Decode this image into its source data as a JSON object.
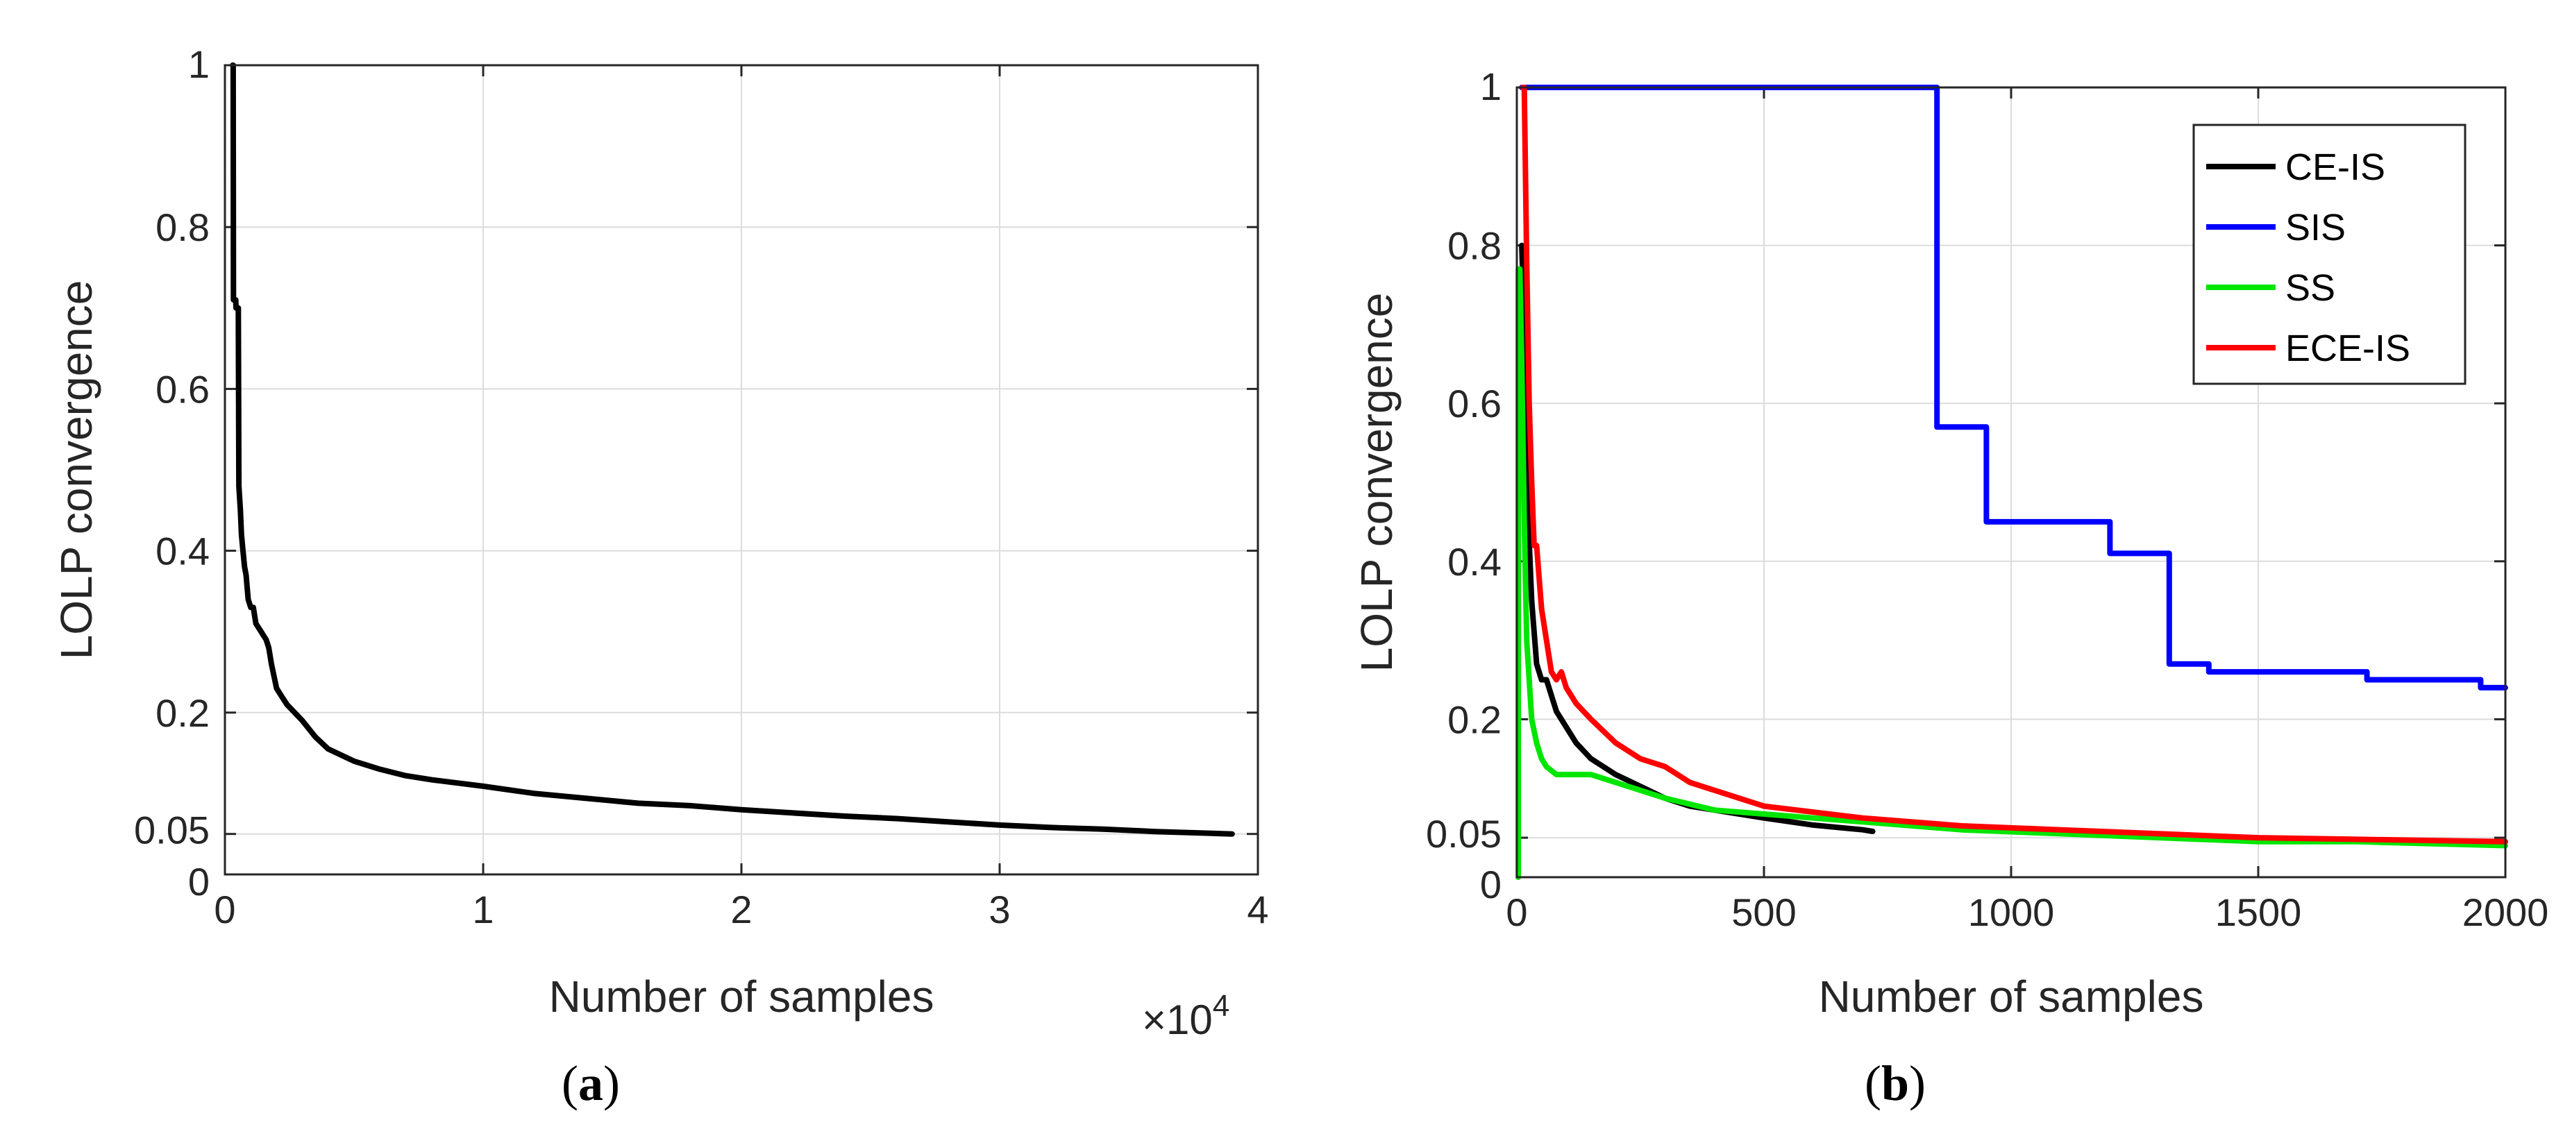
{
  "chart_data": [
    {
      "id": "a",
      "type": "line",
      "caption": "a",
      "title": "",
      "xlabel": "Number of samples",
      "ylabel": "LOLP convergence",
      "xlim": [
        0,
        40000
      ],
      "ylim": [
        0,
        1
      ],
      "x_ticks": [
        0,
        10000,
        20000,
        30000,
        40000
      ],
      "x_tick_labels": [
        "0",
        "1",
        "2",
        "3",
        "4"
      ],
      "x_exponent": {
        "base": "×10",
        "power": "4"
      },
      "y_ticks": [
        0,
        0.05,
        0.2,
        0.4,
        0.6,
        0.8,
        1
      ],
      "y_tick_labels": [
        "0",
        "0.05",
        "0.2",
        "0.4",
        "0.6",
        "0.8",
        "1"
      ],
      "grid": true,
      "series": [
        {
          "name": "LOLP",
          "color": "#000000",
          "x": [
            300,
            320,
            330,
            420,
            430,
            520,
            540,
            600,
            640,
            700,
            760,
            820,
            900,
            1000,
            1100,
            1200,
            1400,
            1600,
            1700,
            1800,
            2000,
            2200,
            2400,
            2700,
            3000,
            3500,
            4000,
            5000,
            6000,
            7000,
            8000,
            10000,
            12000,
            14000,
            16000,
            18000,
            20000,
            22000,
            24000,
            26000,
            28000,
            30000,
            32000,
            34000,
            36000,
            38000,
            39000
          ],
          "y": [
            1.0,
            1.0,
            0.71,
            0.71,
            0.7,
            0.7,
            0.48,
            0.45,
            0.42,
            0.4,
            0.38,
            0.37,
            0.34,
            0.33,
            0.33,
            0.31,
            0.3,
            0.29,
            0.28,
            0.26,
            0.23,
            0.22,
            0.21,
            0.2,
            0.19,
            0.17,
            0.155,
            0.14,
            0.13,
            0.122,
            0.117,
            0.109,
            0.1,
            0.094,
            0.088,
            0.085,
            0.08,
            0.076,
            0.072,
            0.069,
            0.065,
            0.061,
            0.058,
            0.056,
            0.053,
            0.051,
            0.05
          ]
        }
      ]
    },
    {
      "id": "b",
      "type": "line",
      "caption": "b",
      "title": "",
      "xlabel": "Number of samples",
      "ylabel": "LOLP convergence",
      "xlim": [
        0,
        2000
      ],
      "ylim": [
        0,
        1
      ],
      "x_ticks": [
        0,
        500,
        1000,
        1500,
        2000
      ],
      "x_tick_labels": [
        "0",
        "500",
        "1000",
        "1500",
        "2000"
      ],
      "y_ticks": [
        0,
        0.05,
        0.2,
        0.4,
        0.6,
        0.8,
        1
      ],
      "y_tick_labels": [
        "0",
        "0.05",
        "0.2",
        "0.4",
        "0.6",
        "0.8",
        "1"
      ],
      "grid": true,
      "legend_position": "top-right",
      "series": [
        {
          "name": "CE-IS",
          "color": "#000000",
          "x": [
            10,
            15,
            20,
            30,
            40,
            50,
            60,
            80,
            100,
            120,
            150,
            200,
            250,
            300,
            350,
            400,
            500,
            600,
            700,
            720
          ],
          "y": [
            0.8,
            0.7,
            0.5,
            0.35,
            0.27,
            0.25,
            0.25,
            0.21,
            0.19,
            0.17,
            0.15,
            0.13,
            0.115,
            0.1,
            0.09,
            0.085,
            0.075,
            0.066,
            0.06,
            0.058
          ]
        },
        {
          "name": "SIS",
          "color": "#0000ff",
          "x": [
            10,
            850,
            850,
            950,
            950,
            1200,
            1200,
            1320,
            1320,
            1400,
            1400,
            1720,
            1720,
            1950,
            1950,
            2000
          ],
          "y": [
            1.0,
            1.0,
            0.57,
            0.57,
            0.45,
            0.45,
            0.41,
            0.41,
            0.27,
            0.27,
            0.26,
            0.26,
            0.25,
            0.25,
            0.24,
            0.24
          ]
        },
        {
          "name": "SS",
          "color": "#00e600",
          "x": [
            3,
            3,
            6,
            10,
            15,
            20,
            25,
            30,
            40,
            50,
            60,
            80,
            100,
            150,
            200,
            300,
            400,
            500,
            700,
            900,
            1100,
            1300,
            1500,
            1700,
            2000
          ],
          "y": [
            0.0,
            0.77,
            0.77,
            0.65,
            0.45,
            0.3,
            0.25,
            0.2,
            0.17,
            0.15,
            0.14,
            0.13,
            0.13,
            0.13,
            0.12,
            0.1,
            0.085,
            0.08,
            0.07,
            0.06,
            0.055,
            0.05,
            0.045,
            0.045,
            0.04
          ]
        },
        {
          "name": "ECE-IS",
          "color": "#ff0000",
          "x": [
            12,
            15,
            20,
            25,
            30,
            35,
            40,
            50,
            60,
            70,
            80,
            90,
            100,
            120,
            150,
            200,
            250,
            300,
            350,
            400,
            500,
            700,
            900,
            1100,
            1300,
            1500,
            1700,
            2000
          ],
          "y": [
            1.0,
            1.0,
            0.78,
            0.6,
            0.5,
            0.42,
            0.42,
            0.34,
            0.3,
            0.26,
            0.25,
            0.26,
            0.24,
            0.22,
            0.2,
            0.17,
            0.15,
            0.14,
            0.12,
            0.11,
            0.09,
            0.075,
            0.065,
            0.06,
            0.055,
            0.05,
            0.048,
            0.045
          ]
        }
      ]
    }
  ]
}
